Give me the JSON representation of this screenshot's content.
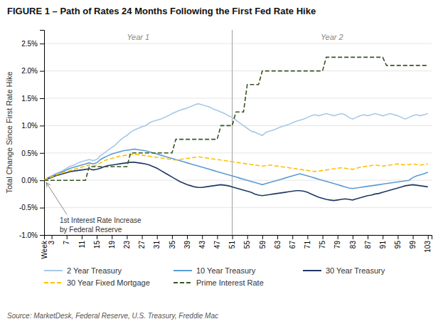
{
  "chart_data": {
    "type": "line",
    "title": "FIGURE 1 – Path of Rates 24 Months Following the First Fed Rate Hike",
    "y_label": "Total Change Since First Rate Hike",
    "source": "Source: MarketDesk, Federal Reserve, U.S. Treasury, Freddie Mac",
    "period_labels": [
      "Year 1",
      "Year 2"
    ],
    "divider_x": 51,
    "annotations": [
      {
        "text": [
          "1st Interest Rate Increase",
          "by Federal Reserve"
        ],
        "x": 1,
        "y": 0.0
      }
    ],
    "x": [
      1,
      2,
      3,
      4,
      5,
      6,
      7,
      8,
      9,
      10,
      11,
      12,
      13,
      14,
      15,
      16,
      17,
      18,
      19,
      20,
      21,
      22,
      23,
      24,
      25,
      26,
      27,
      28,
      29,
      30,
      31,
      32,
      33,
      34,
      35,
      36,
      37,
      38,
      39,
      40,
      41,
      42,
      43,
      44,
      45,
      46,
      47,
      48,
      49,
      50,
      51,
      52,
      53,
      54,
      55,
      56,
      57,
      58,
      59,
      60,
      61,
      62,
      63,
      64,
      65,
      66,
      67,
      68,
      69,
      70,
      71,
      72,
      73,
      74,
      75,
      76,
      77,
      78,
      79,
      80,
      81,
      82,
      83,
      84,
      85,
      86,
      87,
      88,
      89,
      90,
      91,
      92,
      93,
      94,
      95,
      96,
      97,
      98,
      99,
      100,
      101,
      102,
      103
    ],
    "xlim": [
      1,
      104
    ],
    "xticks": [
      {
        "value": 1,
        "label": "Week"
      },
      3,
      7,
      11,
      15,
      19,
      23,
      27,
      31,
      35,
      39,
      43,
      47,
      51,
      55,
      59,
      63,
      67,
      71,
      75,
      79,
      83,
      87,
      91,
      95,
      99,
      103
    ],
    "ylim": [
      -1.0,
      2.75
    ],
    "yticks": [
      {
        "value": -1.0,
        "label": "-1.0%"
      },
      {
        "value": -0.5,
        "label": "-0.5%"
      },
      {
        "value": 0.0,
        "label": "0.0%"
      },
      {
        "value": 0.5,
        "label": "0.5%"
      },
      {
        "value": 1.0,
        "label": "1.0%"
      },
      {
        "value": 1.5,
        "label": "1.5%"
      },
      {
        "value": 2.0,
        "label": "2.0%"
      },
      {
        "value": 2.5,
        "label": "2.5%"
      }
    ],
    "grid": true,
    "legend": "bottom",
    "series": [
      {
        "name": "2 Year Treasury",
        "color": "#a8c8e8",
        "line_style": "solid",
        "values": [
          0.0,
          0.05,
          0.08,
          0.12,
          0.15,
          0.18,
          0.22,
          0.26,
          0.28,
          0.32,
          0.34,
          0.36,
          0.38,
          0.36,
          0.38,
          0.45,
          0.5,
          0.55,
          0.6,
          0.65,
          0.72,
          0.78,
          0.82,
          0.88,
          0.92,
          0.95,
          0.98,
          1.0,
          1.05,
          1.08,
          1.1,
          1.12,
          1.15,
          1.18,
          1.22,
          1.25,
          1.28,
          1.3,
          1.32,
          1.35,
          1.38,
          1.4,
          1.38,
          1.36,
          1.34,
          1.3,
          1.28,
          1.25,
          1.22,
          1.18,
          1.15,
          1.1,
          1.05,
          1.0,
          0.95,
          0.9,
          0.88,
          0.85,
          0.82,
          0.88,
          0.9,
          0.92,
          0.95,
          0.98,
          1.0,
          1.02,
          1.05,
          1.08,
          1.1,
          1.12,
          1.15,
          1.18,
          1.2,
          1.18,
          1.2,
          1.22,
          1.2,
          1.18,
          1.2,
          1.22,
          1.2,
          1.15,
          1.12,
          1.15,
          1.18,
          1.2,
          1.18,
          1.2,
          1.22,
          1.2,
          1.18,
          1.2,
          1.22,
          1.2,
          1.18,
          1.15,
          1.12,
          1.15,
          1.18,
          1.2,
          1.18,
          1.2,
          1.22
        ]
      },
      {
        "name": "10 Year Treasury",
        "color": "#5b9bd5",
        "line_style": "solid",
        "values": [
          0.0,
          0.04,
          0.07,
          0.1,
          0.13,
          0.16,
          0.19,
          0.22,
          0.24,
          0.26,
          0.28,
          0.3,
          0.32,
          0.3,
          0.32,
          0.38,
          0.42,
          0.45,
          0.48,
          0.5,
          0.52,
          0.54,
          0.55,
          0.56,
          0.57,
          0.56,
          0.55,
          0.54,
          0.52,
          0.5,
          0.48,
          0.46,
          0.44,
          0.42,
          0.4,
          0.38,
          0.36,
          0.34,
          0.32,
          0.3,
          0.28,
          0.26,
          0.24,
          0.22,
          0.2,
          0.18,
          0.16,
          0.14,
          0.12,
          0.1,
          0.08,
          0.06,
          0.04,
          0.02,
          0.0,
          -0.02,
          -0.04,
          -0.06,
          -0.08,
          -0.06,
          -0.04,
          -0.02,
          0.0,
          0.02,
          0.04,
          0.06,
          0.08,
          0.1,
          0.12,
          0.1,
          0.08,
          0.06,
          0.04,
          0.02,
          0.0,
          -0.02,
          -0.04,
          -0.06,
          -0.08,
          -0.1,
          -0.12,
          -0.14,
          -0.15,
          -0.14,
          -0.13,
          -0.12,
          -0.11,
          -0.1,
          -0.09,
          -0.08,
          -0.07,
          -0.06,
          -0.05,
          -0.04,
          -0.03,
          -0.02,
          -0.01,
          0.0,
          0.05,
          0.08,
          0.1,
          0.12,
          0.15
        ]
      },
      {
        "name": "30 Year Treasury",
        "color": "#1f3864",
        "line_style": "solid",
        "values": [
          0.0,
          0.03,
          0.05,
          0.08,
          0.1,
          0.12,
          0.14,
          0.16,
          0.17,
          0.18,
          0.19,
          0.2,
          0.21,
          0.19,
          0.2,
          0.22,
          0.25,
          0.27,
          0.28,
          0.29,
          0.3,
          0.31,
          0.32,
          0.33,
          0.33,
          0.32,
          0.31,
          0.3,
          0.28,
          0.25,
          0.22,
          0.18,
          0.14,
          0.1,
          0.06,
          0.02,
          -0.02,
          -0.05,
          -0.08,
          -0.1,
          -0.12,
          -0.13,
          -0.13,
          -0.12,
          -0.11,
          -0.1,
          -0.09,
          -0.08,
          -0.09,
          -0.1,
          -0.12,
          -0.14,
          -0.16,
          -0.18,
          -0.2,
          -0.22,
          -0.25,
          -0.27,
          -0.28,
          -0.27,
          -0.26,
          -0.25,
          -0.24,
          -0.23,
          -0.22,
          -0.21,
          -0.2,
          -0.19,
          -0.19,
          -0.2,
          -0.22,
          -0.25,
          -0.28,
          -0.31,
          -0.33,
          -0.35,
          -0.36,
          -0.37,
          -0.36,
          -0.35,
          -0.34,
          -0.35,
          -0.36,
          -0.34,
          -0.32,
          -0.3,
          -0.28,
          -0.27,
          -0.25,
          -0.24,
          -0.22,
          -0.2,
          -0.18,
          -0.16,
          -0.14,
          -0.12,
          -0.1,
          -0.09,
          -0.08,
          -0.09,
          -0.1,
          -0.11,
          -0.12
        ]
      },
      {
        "name": "30 Year Fixed Mortgage",
        "color": "#ffc000",
        "line_style": "dashed",
        "values": [
          0.0,
          0.04,
          0.06,
          0.09,
          0.12,
          0.14,
          0.16,
          0.18,
          0.2,
          0.22,
          0.24,
          0.26,
          0.28,
          0.26,
          0.28,
          0.32,
          0.36,
          0.38,
          0.4,
          0.42,
          0.44,
          0.45,
          0.46,
          0.47,
          0.48,
          0.47,
          0.46,
          0.45,
          0.44,
          0.43,
          0.42,
          0.41,
          0.4,
          0.39,
          0.38,
          0.37,
          0.38,
          0.39,
          0.4,
          0.41,
          0.42,
          0.43,
          0.42,
          0.41,
          0.4,
          0.39,
          0.38,
          0.37,
          0.36,
          0.35,
          0.34,
          0.33,
          0.32,
          0.31,
          0.3,
          0.29,
          0.28,
          0.27,
          0.26,
          0.27,
          0.28,
          0.27,
          0.26,
          0.25,
          0.24,
          0.23,
          0.22,
          0.21,
          0.2,
          0.19,
          0.18,
          0.17,
          0.16,
          0.17,
          0.18,
          0.19,
          0.2,
          0.21,
          0.22,
          0.23,
          0.22,
          0.21,
          0.2,
          0.22,
          0.24,
          0.25,
          0.26,
          0.27,
          0.28,
          0.27,
          0.26,
          0.27,
          0.28,
          0.29,
          0.3,
          0.29,
          0.28,
          0.29,
          0.3,
          0.29,
          0.28,
          0.29,
          0.3
        ]
      },
      {
        "name": "Prime Interest Rate",
        "color": "#375623",
        "line_style": "dashed",
        "values": [
          0.0,
          0.0,
          0.0,
          0.0,
          0.0,
          0.0,
          0.0,
          0.0,
          0.0,
          0.0,
          0.0,
          0.0,
          0.25,
          0.25,
          0.25,
          0.25,
          0.25,
          0.25,
          0.25,
          0.25,
          0.25,
          0.25,
          0.25,
          0.5,
          0.5,
          0.5,
          0.5,
          0.5,
          0.5,
          0.5,
          0.5,
          0.5,
          0.5,
          0.5,
          0.5,
          0.75,
          0.75,
          0.75,
          0.75,
          0.75,
          0.75,
          0.75,
          0.75,
          0.75,
          0.75,
          0.75,
          0.75,
          1.0,
          1.0,
          1.0,
          1.0,
          1.25,
          1.25,
          1.25,
          1.75,
          1.75,
          1.75,
          1.75,
          2.0,
          2.0,
          2.0,
          2.0,
          2.0,
          2.0,
          2.0,
          2.0,
          2.0,
          2.0,
          2.0,
          2.0,
          2.0,
          2.0,
          2.0,
          2.0,
          2.0,
          2.25,
          2.25,
          2.25,
          2.25,
          2.25,
          2.25,
          2.25,
          2.25,
          2.25,
          2.25,
          2.25,
          2.25,
          2.25,
          2.25,
          2.25,
          2.25,
          2.1,
          2.1,
          2.1,
          2.1,
          2.1,
          2.1,
          2.1,
          2.1,
          2.1,
          2.1,
          2.1,
          2.1
        ]
      }
    ]
  }
}
